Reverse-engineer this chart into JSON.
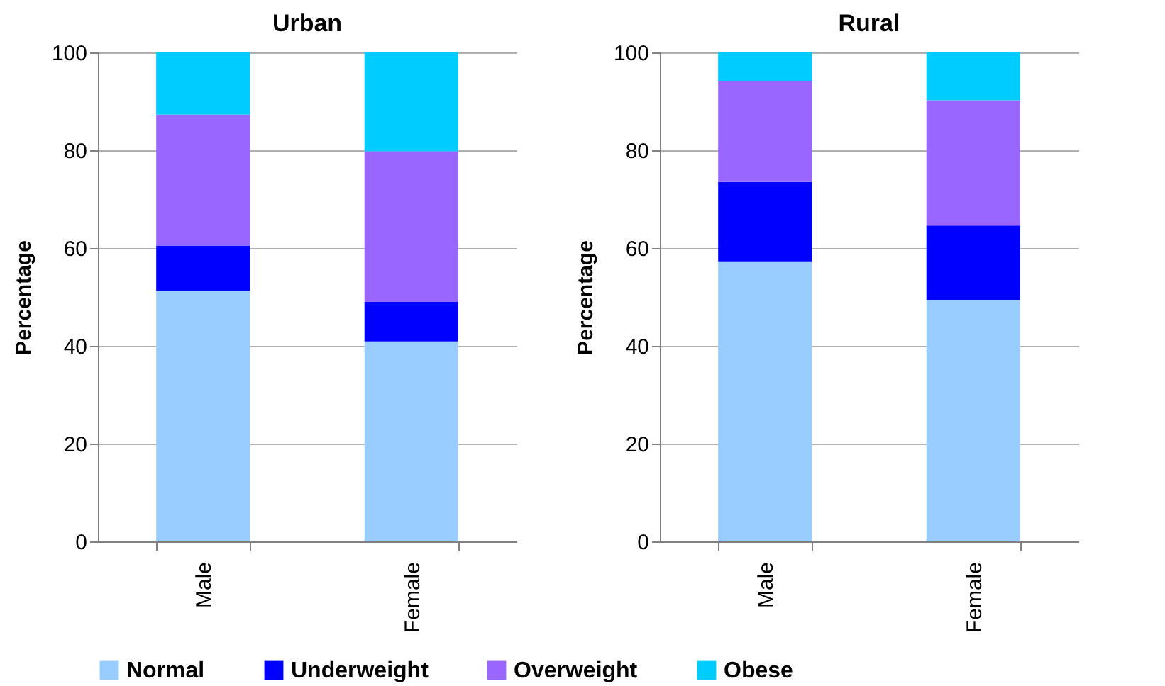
{
  "chart_data": [
    {
      "type": "bar",
      "title": "Urban",
      "ylabel": "Percentage",
      "categories": [
        "Male",
        "Female"
      ],
      "stacked": true,
      "ylim": [
        0,
        100
      ],
      "yticks": [
        0,
        20,
        40,
        60,
        80,
        100
      ],
      "grid": "y",
      "legend": "bottom",
      "series": [
        {
          "name": "Normal",
          "color": "#99ccff",
          "values": [
            51.3,
            40.9
          ]
        },
        {
          "name": "Underweight",
          "color": "#0000ff",
          "values": [
            9.2,
            8.1
          ]
        },
        {
          "name": "Overweight",
          "color": "#9966ff",
          "values": [
            26.8,
            30.8
          ]
        },
        {
          "name": "Obese",
          "color": "#00ccff",
          "values": [
            12.7,
            20.2
          ]
        }
      ]
    },
    {
      "type": "bar",
      "title": "Rural",
      "ylabel": "Percentage",
      "categories": [
        "Male",
        "Female"
      ],
      "stacked": true,
      "ylim": [
        0,
        100
      ],
      "yticks": [
        0,
        20,
        40,
        60,
        80,
        100
      ],
      "grid": "y",
      "legend": "bottom",
      "series": [
        {
          "name": "Normal",
          "color": "#99ccff",
          "values": [
            57.3,
            49.3
          ]
        },
        {
          "name": "Underweight",
          "color": "#0000ff",
          "values": [
            16.2,
            15.3
          ]
        },
        {
          "name": "Overweight",
          "color": "#9966ff",
          "values": [
            20.7,
            25.6
          ]
        },
        {
          "name": "Obese",
          "color": "#00ccff",
          "values": [
            5.8,
            9.8
          ]
        }
      ]
    }
  ]
}
